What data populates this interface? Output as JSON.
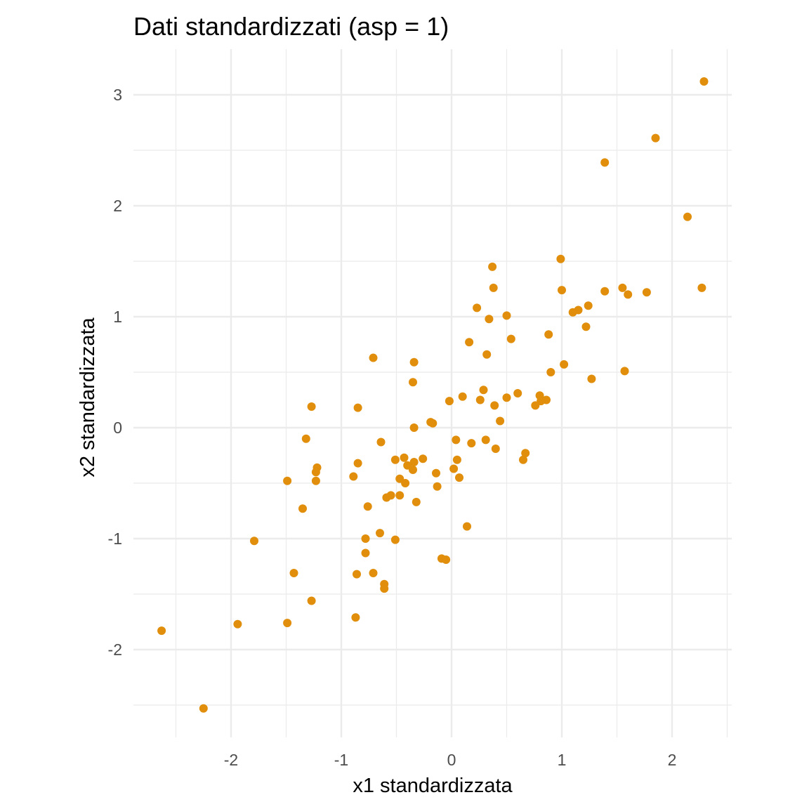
{
  "chart_data": {
    "type": "scatter",
    "title": "Dati standardizzati (asp = 1)",
    "xlabel": "x1 standardizzata",
    "ylabel": "x2 standardizzata",
    "xlim": [
      -2.86,
      2.5
    ],
    "ylim": [
      -2.78,
      3.2
    ],
    "x_ticks": [
      -2,
      -1,
      0,
      1,
      2
    ],
    "y_ticks": [
      -2,
      -1,
      0,
      1,
      2,
      3
    ],
    "x_tick_labels": [
      "-2",
      "-1",
      "0",
      "1",
      "2"
    ],
    "y_tick_labels": [
      "-2",
      "-1",
      "0",
      "1",
      "2",
      "3"
    ],
    "x_minor": [
      -2.5,
      -1.5,
      -0.5,
      0.5,
      1.5,
      2.5
    ],
    "y_minor": [
      -2.5,
      -1.5,
      -0.5,
      0.5,
      1.5,
      2.5
    ],
    "grid": true,
    "point_color": "#E08E0B",
    "points": [
      [
        2.29,
        3.12
      ],
      [
        1.85,
        2.61
      ],
      [
        1.39,
        2.39
      ],
      [
        2.14,
        1.9
      ],
      [
        0.99,
        1.52
      ],
      [
        0.37,
        1.45
      ],
      [
        2.27,
        1.26
      ],
      [
        1.55,
        1.26
      ],
      [
        0.38,
        1.26
      ],
      [
        1.0,
        1.24
      ],
      [
        1.39,
        1.23
      ],
      [
        1.77,
        1.22
      ],
      [
        1.6,
        1.2
      ],
      [
        1.24,
        1.1
      ],
      [
        0.23,
        1.08
      ],
      [
        1.15,
        1.06
      ],
      [
        1.1,
        1.04
      ],
      [
        0.5,
        1.01
      ],
      [
        0.34,
        0.98
      ],
      [
        1.22,
        0.91
      ],
      [
        0.88,
        0.84
      ],
      [
        0.54,
        0.8
      ],
      [
        0.16,
        0.77
      ],
      [
        0.32,
        0.66
      ],
      [
        -0.71,
        0.63
      ],
      [
        -0.34,
        0.59
      ],
      [
        1.02,
        0.57
      ],
      [
        1.57,
        0.51
      ],
      [
        0.9,
        0.5
      ],
      [
        1.27,
        0.44
      ],
      [
        -0.35,
        0.41
      ],
      [
        0.29,
        0.34
      ],
      [
        0.6,
        0.31
      ],
      [
        0.8,
        0.29
      ],
      [
        0.1,
        0.28
      ],
      [
        0.5,
        0.27
      ],
      [
        0.86,
        0.25
      ],
      [
        0.26,
        0.25
      ],
      [
        0.81,
        0.24
      ],
      [
        -0.02,
        0.24
      ],
      [
        0.39,
        0.2
      ],
      [
        0.76,
        0.2
      ],
      [
        -1.27,
        0.19
      ],
      [
        -0.85,
        0.18
      ],
      [
        0.44,
        0.06
      ],
      [
        -0.19,
        0.05
      ],
      [
        -0.17,
        0.04
      ],
      [
        -0.34,
        0.0
      ],
      [
        -1.32,
        -0.1
      ],
      [
        0.04,
        -0.11
      ],
      [
        0.31,
        -0.11
      ],
      [
        -0.64,
        -0.13
      ],
      [
        0.18,
        -0.14
      ],
      [
        0.4,
        -0.19
      ],
      [
        0.67,
        -0.23
      ],
      [
        -0.43,
        -0.27
      ],
      [
        -0.26,
        -0.28
      ],
      [
        0.05,
        -0.29
      ],
      [
        -0.51,
        -0.29
      ],
      [
        0.65,
        -0.29
      ],
      [
        -0.34,
        -0.31
      ],
      [
        -0.85,
        -0.32
      ],
      [
        -0.4,
        -0.34
      ],
      [
        -1.22,
        -0.36
      ],
      [
        0.02,
        -0.37
      ],
      [
        -0.35,
        -0.38
      ],
      [
        -1.23,
        -0.4
      ],
      [
        -0.14,
        -0.41
      ],
      [
        -0.89,
        -0.44
      ],
      [
        0.07,
        -0.45
      ],
      [
        -0.47,
        -0.46
      ],
      [
        -1.49,
        -0.48
      ],
      [
        -1.23,
        -0.48
      ],
      [
        -0.42,
        -0.5
      ],
      [
        -0.13,
        -0.53
      ],
      [
        -0.47,
        -0.61
      ],
      [
        -0.55,
        -0.61
      ],
      [
        -0.59,
        -0.63
      ],
      [
        -0.32,
        -0.67
      ],
      [
        -0.76,
        -0.71
      ],
      [
        -1.35,
        -0.73
      ],
      [
        0.14,
        -0.89
      ],
      [
        -0.65,
        -0.95
      ],
      [
        -0.78,
        -1.0
      ],
      [
        -0.51,
        -1.01
      ],
      [
        -1.79,
        -1.02
      ],
      [
        -0.78,
        -1.13
      ],
      [
        -0.09,
        -1.18
      ],
      [
        -0.05,
        -1.19
      ],
      [
        -1.43,
        -1.31
      ],
      [
        -0.71,
        -1.31
      ],
      [
        -0.86,
        -1.32
      ],
      [
        -0.61,
        -1.41
      ],
      [
        -0.61,
        -1.45
      ],
      [
        -1.27,
        -1.56
      ],
      [
        -0.87,
        -1.71
      ],
      [
        -1.49,
        -1.76
      ],
      [
        -1.94,
        -1.77
      ],
      [
        -2.63,
        -1.83
      ],
      [
        -2.25,
        -2.53
      ]
    ]
  }
}
